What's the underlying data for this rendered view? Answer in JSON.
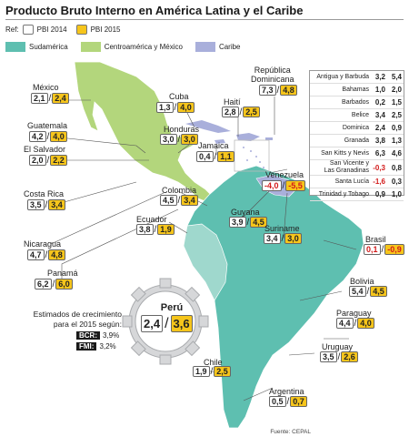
{
  "title": "Producto Bruto Interno en América Latina y el Caribe",
  "ref": {
    "label": "Ref:",
    "pbi2014": "PBI 2014",
    "pbi2015": "PBI 2015"
  },
  "legend": [
    {
      "label": "Sudamérica",
      "color": "#5ebfb0"
    },
    {
      "label": "Centroamérica y México",
      "color": "#b3d67c"
    },
    {
      "label": "Caribe",
      "color": "#a9afdb"
    }
  ],
  "countries": {
    "mexico": {
      "name": "México",
      "v2014": "2,1",
      "v2015": "2,4"
    },
    "guatemala": {
      "name": "Guatemala",
      "v2014": "4,2",
      "v2015": "4,0"
    },
    "elsalvador": {
      "name": "El Salvador",
      "v2014": "2,0",
      "v2015": "2,2"
    },
    "costarica": {
      "name": "Costa Rica",
      "v2014": "3,5",
      "v2015": "3,4"
    },
    "nicaragua": {
      "name": "Nicaragua",
      "v2014": "4,7",
      "v2015": "4,8"
    },
    "panama": {
      "name": "Panamá",
      "v2014": "6,2",
      "v2015": "6,0"
    },
    "cuba": {
      "name": "Cuba",
      "v2014": "1,3",
      "v2015": "4,0"
    },
    "haiti": {
      "name": "Haití",
      "v2014": "2,8",
      "v2015": "2,5"
    },
    "repdom": {
      "name": "República\nDominicana",
      "v2014": "7,3",
      "v2015": "4,8"
    },
    "honduras": {
      "name": "Honduras",
      "v2014": "3,0",
      "v2015": "3,0"
    },
    "jamaica": {
      "name": "Jamaica",
      "v2014": "0,4",
      "v2015": "1,1"
    },
    "colombia": {
      "name": "Colombia",
      "v2014": "4,5",
      "v2015": "3,4"
    },
    "venezuela": {
      "name": "Venezuela",
      "v2014": "-4,0",
      "v2015": "-5,5"
    },
    "ecuador": {
      "name": "Ecuador",
      "v2014": "3,8",
      "v2015": "1,9"
    },
    "guyana": {
      "name": "Guyana",
      "v2014": "3,9",
      "v2015": "4,5"
    },
    "suriname": {
      "name": "Suriname",
      "v2014": "3,4",
      "v2015": "3,0"
    },
    "brasil": {
      "name": "Brasil",
      "v2014": "0,1",
      "v2015": "-0,9"
    },
    "bolivia": {
      "name": "Bolivia",
      "v2014": "5,4",
      "v2015": "4,5"
    },
    "paraguay": {
      "name": "Paraguay",
      "v2014": "4,4",
      "v2015": "4,0"
    },
    "uruguay": {
      "name": "Uruguay",
      "v2014": "3,5",
      "v2015": "2,6"
    },
    "chile": {
      "name": "Chile",
      "v2014": "1,9",
      "v2015": "2,5"
    },
    "argentina": {
      "name": "Argentina",
      "v2014": "0,5",
      "v2015": "0,7"
    }
  },
  "caribe_table": [
    {
      "name": "Antigua y Barbuda",
      "v2014": "3,2",
      "v2015": "5,4"
    },
    {
      "name": "Bahamas",
      "v2014": "1,0",
      "v2015": "2,0"
    },
    {
      "name": "Barbados",
      "v2014": "0,2",
      "v2015": "1,5"
    },
    {
      "name": "Belice",
      "v2014": "3,4",
      "v2015": "2,5"
    },
    {
      "name": "Dominica",
      "v2014": "2,4",
      "v2015": "0,9"
    },
    {
      "name": "Granada",
      "v2014": "3,8",
      "v2015": "1,3"
    },
    {
      "name": "San Kitts y Nevis",
      "v2014": "6,3",
      "v2015": "4,6"
    },
    {
      "name": "San Vicente y\nLas Granadinas",
      "v2014": "-0,3",
      "v2015": "0,8"
    },
    {
      "name": "Santa Lucía",
      "v2014": "-1,6",
      "v2015": "0,3"
    },
    {
      "name": "Trinidad y Tobago",
      "v2014": "0,9",
      "v2015": "1,0"
    }
  ],
  "peru": {
    "name": "Perú",
    "v2014": "2,4",
    "v2015": "3,6"
  },
  "estimates": {
    "heading": "Estimados de crecimiento\npara el 2015 según:",
    "bcr_label": "BCR:",
    "bcr_value": "3,9%",
    "fmi_label": "FMI:",
    "fmi_value": "3,2%"
  },
  "source": "Fuente: CEPAL"
}
